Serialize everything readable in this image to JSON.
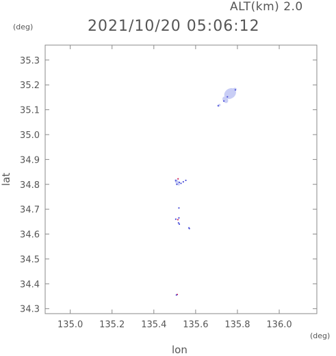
{
  "header": {
    "altitude": "ALT(km) 2.0",
    "timestamp": "2021/10/20 05:06:12"
  },
  "chart_data": {
    "type": "scatter",
    "title": "2021/10/20 05:06:12",
    "xlabel": "lon",
    "ylabel": "lat",
    "x_unit": "(deg)",
    "y_unit": "(deg)",
    "xlim": [
      134.88,
      136.18
    ],
    "ylim": [
      34.28,
      35.36
    ],
    "x_ticks": [
      "135.0",
      "135.2",
      "135.4",
      "135.6",
      "135.8",
      "136.0"
    ],
    "y_ticks": [
      "34.3",
      "34.4",
      "34.5",
      "34.6",
      "34.7",
      "34.8",
      "34.9",
      "35.0",
      "35.1",
      "35.2",
      "35.3"
    ],
    "grid": false,
    "colors": {
      "fill": "#c8cdf5",
      "point": "#4a4fd8",
      "accent": "#d2265a",
      "axis": "#888888"
    },
    "blobs": [
      {
        "lon": 135.765,
        "lat": 35.165,
        "rlon": 0.03,
        "rlat": 0.02
      },
      {
        "lon": 135.782,
        "lat": 35.178,
        "rlon": 0.016,
        "rlat": 0.008
      },
      {
        "lon": 135.742,
        "lat": 35.14,
        "rlon": 0.012,
        "rlat": 0.014
      },
      {
        "lon": 135.712,
        "lat": 35.118,
        "rlon": 0.008,
        "rlat": 0.005
      },
      {
        "lon": 135.512,
        "lat": 34.808,
        "rlon": 0.008,
        "rlat": 0.015
      }
    ],
    "points": [
      {
        "lon": 135.79,
        "lat": 35.18,
        "kind": "point"
      },
      {
        "lon": 135.752,
        "lat": 35.152,
        "kind": "point"
      },
      {
        "lon": 135.735,
        "lat": 35.135,
        "kind": "point"
      },
      {
        "lon": 135.708,
        "lat": 35.116,
        "kind": "point"
      },
      {
        "lon": 135.505,
        "lat": 34.815,
        "kind": "point"
      },
      {
        "lon": 135.51,
        "lat": 34.8,
        "kind": "point"
      },
      {
        "lon": 135.516,
        "lat": 34.822,
        "kind": "accent"
      },
      {
        "lon": 135.522,
        "lat": 34.808,
        "kind": "point"
      },
      {
        "lon": 135.53,
        "lat": 34.804,
        "kind": "point"
      },
      {
        "lon": 135.541,
        "lat": 34.81,
        "kind": "point"
      },
      {
        "lon": 135.553,
        "lat": 34.816,
        "kind": "point"
      },
      {
        "lon": 135.52,
        "lat": 34.705,
        "kind": "point"
      },
      {
        "lon": 135.505,
        "lat": 34.66,
        "kind": "point"
      },
      {
        "lon": 135.515,
        "lat": 34.658,
        "kind": "accent"
      },
      {
        "lon": 135.52,
        "lat": 34.665,
        "kind": "point"
      },
      {
        "lon": 135.518,
        "lat": 34.645,
        "kind": "point"
      },
      {
        "lon": 135.522,
        "lat": 34.64,
        "kind": "point"
      },
      {
        "lon": 135.568,
        "lat": 34.625,
        "kind": "point"
      },
      {
        "lon": 135.57,
        "lat": 34.622,
        "kind": "point"
      },
      {
        "lon": 135.512,
        "lat": 34.357,
        "kind": "accent"
      },
      {
        "lon": 135.508,
        "lat": 34.355,
        "kind": "point"
      }
    ]
  }
}
